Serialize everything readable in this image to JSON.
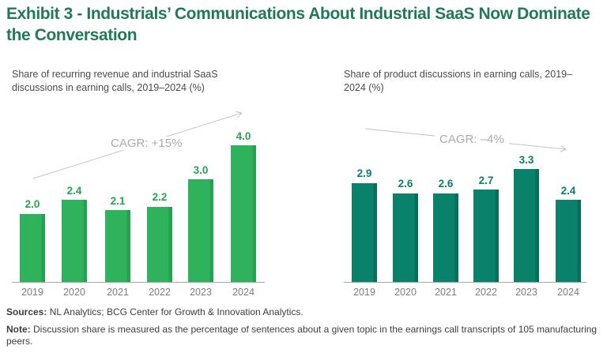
{
  "title": "Exhibit 3 - Industrials’ Communications About Industrial SaaS Now Dominate the Conversation",
  "chart_data": [
    {
      "type": "bar",
      "title": "Share of recurring revenue and industrial SaaS discussions in earning calls, 2019–2024 (%)",
      "categories": [
        "2019",
        "2020",
        "2021",
        "2022",
        "2023",
        "2024"
      ],
      "values": [
        2.0,
        2.4,
        2.1,
        2.2,
        3.0,
        4.0
      ],
      "value_labels": [
        "2.0",
        "2.4",
        "2.1",
        "2.2",
        "3.0",
        "4.0"
      ],
      "cagr_label": "CAGR: +15%",
      "trend": "up",
      "xlabel": "",
      "ylabel": "",
      "ylim": [
        0,
        4.4
      ],
      "grid": false,
      "legend": false,
      "bar_color": "#2eb25b",
      "bar_edge_color": "#27a04f",
      "value_label_color": "#27a353"
    },
    {
      "type": "bar",
      "title": "Share of product discussions in earning calls, 2019–2024 (%)",
      "categories": [
        "2019",
        "2020",
        "2021",
        "2022",
        "2023",
        "2024"
      ],
      "values": [
        2.9,
        2.6,
        2.6,
        2.7,
        3.3,
        2.4
      ],
      "value_labels": [
        "2.9",
        "2.6",
        "2.6",
        "2.7",
        "3.3",
        "2.4"
      ],
      "cagr_label": "CAGR: –4%",
      "trend": "down",
      "xlabel": "",
      "ylabel": "",
      "ylim": [
        0,
        4.4
      ],
      "grid": false,
      "legend": false,
      "bar_color": "#09826b",
      "bar_edge_color": "#076e5a",
      "value_label_color": "#0a8066"
    }
  ],
  "footer": {
    "sources_label": "Sources:",
    "sources_text": "NL Analytics; BCG Center for Growth & Innovation Analytics.",
    "note_label": "Note:",
    "note_text": "Discussion share is measured as the percentage of sentences about a given topic in the earnings call transcripts of 105 manufacturing peers."
  },
  "colors": {
    "title_green": "#217a56",
    "subtitle_gray": "#4b4b4b",
    "axis_gray": "#a8a8a8",
    "year_label_gray": "#7c7c7c",
    "cagr_text_gray": "#ababab",
    "arrow_gray": "#c4c4c4",
    "background": "#ffffff"
  }
}
